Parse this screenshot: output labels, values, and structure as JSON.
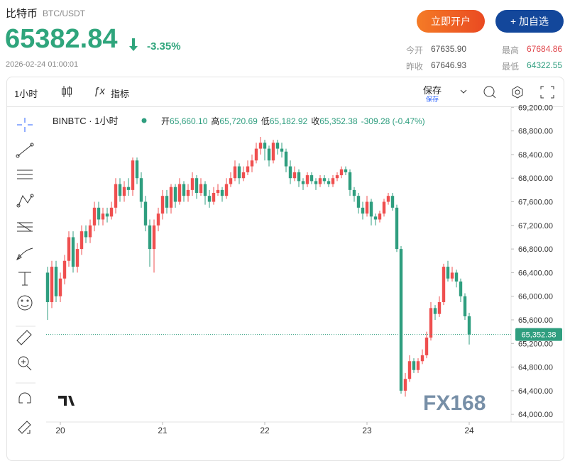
{
  "header": {
    "name": "比特币",
    "pair": "BTC/USDT",
    "price": "65382.84",
    "change": "-3.35%",
    "time": "2026-02-24 01:00:01",
    "open_account": "立即开户",
    "add_watch": "+ 加自选",
    "stats": [
      [
        "今开",
        "67635.90"
      ],
      [
        "最高",
        "67684.86"
      ],
      [
        "昨收",
        "67646.93"
      ],
      [
        "最低",
        "64322.55"
      ]
    ]
  },
  "toolbar": {
    "interval": "1小时",
    "indicators": "指标",
    "save": "保存",
    "save_sub": "保存"
  },
  "chart_data": {
    "type": "candlestick",
    "symbol": "BINBTC · 1小时",
    "ohlc_names": [
      "开",
      "高",
      "低",
      "收"
    ],
    "ohlc_labels": [
      "65,660.10",
      "65,720.69",
      "65,182.92",
      "65,352.38"
    ],
    "change_label": "-309.28 (-0.47%)",
    "last_price_label": "65,352.38",
    "watermark": "FX168",
    "up_color": "#ef4f4f",
    "down_color": "#2f9e7f",
    "ylim": [
      63870,
      69300
    ],
    "yticks": [
      {
        "value": 64000,
        "label": "64,000.00"
      },
      {
        "value": 64400,
        "label": "64,400.00"
      },
      {
        "value": 64800,
        "label": "64,800.00"
      },
      {
        "value": 65200,
        "label": "65,200.00"
      },
      {
        "value": 65600,
        "label": "65,600.00"
      },
      {
        "value": 66000,
        "label": "66,000.00"
      },
      {
        "value": 66400,
        "label": "66,400.00"
      },
      {
        "value": 66800,
        "label": "66,800.00"
      },
      {
        "value": 67200,
        "label": "67,200.00"
      },
      {
        "value": 67600,
        "label": "67,600.00"
      },
      {
        "value": 68000,
        "label": "68,000.00"
      },
      {
        "value": 68400,
        "label": "68,400.00"
      },
      {
        "value": 68800,
        "label": "68,800.00"
      },
      {
        "value": 69200,
        "label": "69,200.00"
      }
    ],
    "xticks": [
      {
        "value": 3,
        "label": "20"
      },
      {
        "value": 27,
        "label": "21"
      },
      {
        "value": 51,
        "label": "22"
      },
      {
        "value": 75,
        "label": "23"
      },
      {
        "value": 99,
        "label": "24"
      }
    ],
    "candles": [
      [
        66400,
        66500,
        65600,
        65900
      ],
      [
        65900,
        66600,
        65800,
        66500
      ],
      [
        66500,
        66600,
        65900,
        66000
      ],
      [
        66000,
        66400,
        65900,
        66300
      ],
      [
        66300,
        66700,
        66200,
        66600
      ],
      [
        66600,
        67100,
        66500,
        67000
      ],
      [
        67000,
        67100,
        66400,
        66500
      ],
      [
        66500,
        66900,
        66400,
        66800
      ],
      [
        66800,
        67200,
        66700,
        67100
      ],
      [
        67100,
        67200,
        66900,
        67000
      ],
      [
        67000,
        67300,
        66900,
        67200
      ],
      [
        67200,
        67600,
        67100,
        67500
      ],
      [
        67500,
        67600,
        67200,
        67300
      ],
      [
        67300,
        67500,
        67200,
        67400
      ],
      [
        67400,
        67500,
        67250,
        67350
      ],
      [
        67350,
        67600,
        67300,
        67500
      ],
      [
        67500,
        68000,
        67400,
        67900
      ],
      [
        67900,
        68000,
        67600,
        67700
      ],
      [
        67700,
        67950,
        67600,
        67850
      ],
      [
        67850,
        68000,
        67700,
        67800
      ],
      [
        67800,
        68350,
        67700,
        68300
      ],
      [
        68300,
        68350,
        67900,
        68000
      ],
      [
        68000,
        68100,
        67500,
        67600
      ],
      [
        67600,
        67700,
        67100,
        67200
      ],
      [
        67200,
        67300,
        66500,
        66800
      ],
      [
        66800,
        67300,
        66400,
        67200
      ],
      [
        67200,
        67500,
        67100,
        67400
      ],
      [
        67400,
        67800,
        67300,
        67700
      ],
      [
        67700,
        67800,
        67400,
        67500
      ],
      [
        67500,
        67900,
        67400,
        67850
      ],
      [
        67850,
        67900,
        67500,
        67600
      ],
      [
        67600,
        68000,
        67550,
        67900
      ],
      [
        67900,
        67950,
        67600,
        67700
      ],
      [
        67700,
        67900,
        67600,
        67800
      ],
      [
        67800,
        68100,
        67700,
        68000
      ],
      [
        68000,
        68050,
        67650,
        67750
      ],
      [
        67750,
        68000,
        67700,
        67900
      ],
      [
        67900,
        67950,
        67550,
        67700
      ],
      [
        67700,
        67800,
        67500,
        67600
      ],
      [
        67600,
        67850,
        67550,
        67750
      ],
      [
        67750,
        67900,
        67700,
        67800
      ],
      [
        67800,
        67850,
        67600,
        67700
      ],
      [
        67700,
        68000,
        67650,
        67900
      ],
      [
        67900,
        68100,
        67850,
        68000
      ],
      [
        68000,
        68300,
        67950,
        68200
      ],
      [
        68200,
        68250,
        67900,
        68000
      ],
      [
        68000,
        68200,
        67950,
        68100
      ],
      [
        68100,
        68300,
        68050,
        68200
      ],
      [
        68200,
        68400,
        68100,
        68300
      ],
      [
        68300,
        68600,
        68250,
        68500
      ],
      [
        68500,
        68700,
        68400,
        68600
      ],
      [
        68600,
        68650,
        68300,
        68500
      ],
      [
        68500,
        68550,
        68200,
        68300
      ],
      [
        68300,
        68650,
        68250,
        68600
      ],
      [
        68600,
        68650,
        68400,
        68500
      ],
      [
        68500,
        68600,
        68350,
        68450
      ],
      [
        68450,
        68500,
        68100,
        68200
      ],
      [
        68200,
        68300,
        67900,
        68000
      ],
      [
        68000,
        68200,
        67950,
        68100
      ],
      [
        68100,
        68150,
        67850,
        67950
      ],
      [
        67950,
        68000,
        67800,
        67900
      ],
      [
        67900,
        68100,
        67850,
        68050
      ],
      [
        68050,
        68100,
        67900,
        67950
      ],
      [
        67950,
        68000,
        67800,
        67900
      ],
      [
        67900,
        68050,
        67850,
        68000
      ],
      [
        68000,
        68050,
        67900,
        67950
      ],
      [
        67950,
        68000,
        67850,
        67900
      ],
      [
        67900,
        68050,
        67850,
        68000
      ],
      [
        68000,
        68100,
        67950,
        68050
      ],
      [
        68050,
        68200,
        68000,
        68150
      ],
      [
        68150,
        68200,
        68050,
        68100
      ],
      [
        68100,
        68150,
        67700,
        67800
      ],
      [
        67800,
        67850,
        67600,
        67700
      ],
      [
        67700,
        67750,
        67400,
        67500
      ],
      [
        67500,
        67600,
        67300,
        67400
      ],
      [
        67400,
        67700,
        67350,
        67600
      ],
      [
        67600,
        67650,
        67200,
        67350
      ],
      [
        67350,
        67400,
        67200,
        67300
      ],
      [
        67300,
        67450,
        67250,
        67400
      ],
      [
        67400,
        67650,
        67350,
        67600
      ],
      [
        67600,
        67750,
        67550,
        67700
      ],
      [
        67700,
        67750,
        67450,
        67500
      ],
      [
        67500,
        67550,
        66750,
        66800
      ],
      [
        66800,
        66850,
        64350,
        64400
      ],
      [
        64400,
        64700,
        64300,
        64600
      ],
      [
        64600,
        65000,
        64550,
        64900
      ],
      [
        64900,
        64950,
        64700,
        64750
      ],
      [
        64750,
        64950,
        64700,
        64900
      ],
      [
        64900,
        65100,
        64850,
        65000
      ],
      [
        65000,
        65400,
        64950,
        65300
      ],
      [
        65300,
        65900,
        65250,
        65800
      ],
      [
        65800,
        65850,
        65600,
        65700
      ],
      [
        65700,
        66000,
        65650,
        65900
      ],
      [
        65900,
        66550,
        65850,
        66500
      ],
      [
        66500,
        66600,
        66250,
        66300
      ],
      [
        66300,
        66500,
        66250,
        66400
      ],
      [
        66400,
        66450,
        66150,
        66250
      ],
      [
        66250,
        66300,
        65900,
        66000
      ],
      [
        66000,
        66050,
        65600,
        65660.1
      ],
      [
        65660.1,
        65720.69,
        65182.92,
        65352.38
      ]
    ]
  }
}
